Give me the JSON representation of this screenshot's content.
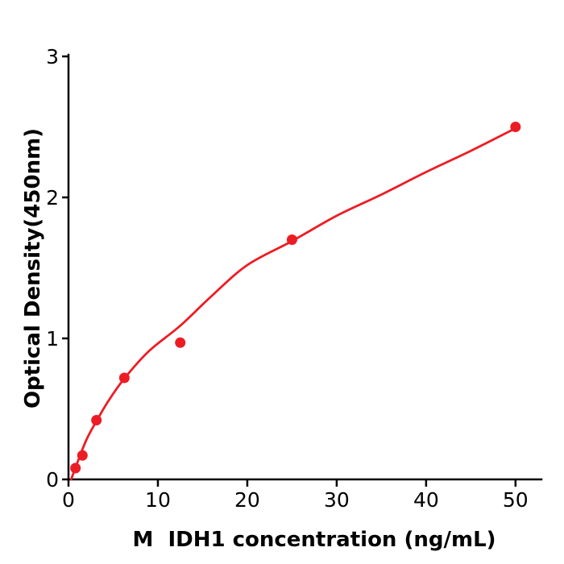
{
  "figure": {
    "background": "#ffffff"
  },
  "chart_data": {
    "type": "scatter",
    "title": "",
    "xlabel": "M  IDH1 concentration (ng/mL)",
    "ylabel": "Optical Density(450nm)",
    "xlim": [
      0,
      52.9
    ],
    "ylim": [
      0,
      3
    ],
    "x_ticks": [
      0,
      10,
      20,
      30,
      40,
      50
    ],
    "y_ticks": [
      0,
      1,
      2,
      3
    ],
    "grid": false,
    "legend": null,
    "axis_color": "#000000",
    "point_color": "#ED1C24",
    "curve_color": "#ED1C24",
    "points": {
      "x": [
        0.78,
        1.56,
        3.125,
        6.25,
        12.5,
        25,
        50
      ],
      "y": [
        0.08,
        0.17,
        0.42,
        0.72,
        0.97,
        1.7,
        2.5
      ]
    },
    "fit_curve": [
      [
        0.3,
        0.0
      ],
      [
        1,
        0.12
      ],
      [
        2,
        0.28
      ],
      [
        3.1,
        0.41
      ],
      [
        4.5,
        0.56
      ],
      [
        6.3,
        0.72
      ],
      [
        9,
        0.91
      ],
      [
        12.5,
        1.09
      ],
      [
        16,
        1.3
      ],
      [
        20,
        1.52
      ],
      [
        25,
        1.69
      ],
      [
        30,
        1.87
      ],
      [
        35,
        2.02
      ],
      [
        40,
        2.18
      ],
      [
        45,
        2.33
      ],
      [
        50,
        2.49
      ]
    ]
  }
}
